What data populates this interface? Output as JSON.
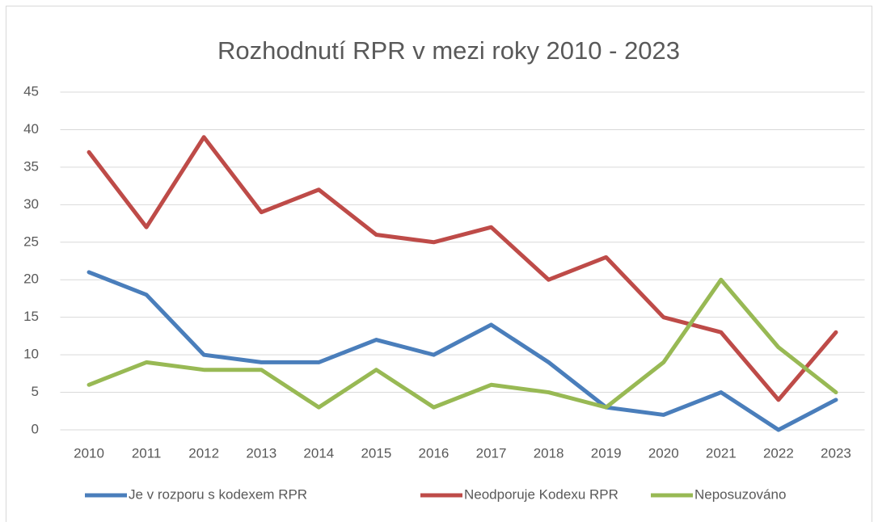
{
  "chart_data": {
    "type": "line",
    "title": "Rozhodnutí RPR v mezi roky 2010 - 2023",
    "categories": [
      "2010",
      "2011",
      "2012",
      "2013",
      "2014",
      "2015",
      "2016",
      "2017",
      "2018",
      "2019",
      "2020",
      "2021",
      "2022",
      "2023"
    ],
    "series": [
      {
        "name": "Je v rozporu s kodexem RPR",
        "color": "#4a7ebb",
        "values": [
          21,
          18,
          10,
          9,
          9,
          12,
          10,
          14,
          9,
          3,
          2,
          5,
          0,
          4
        ]
      },
      {
        "name": "Neodporuje Kodexu RPR",
        "color": "#be4b48",
        "values": [
          37,
          27,
          39,
          29,
          32,
          26,
          25,
          27,
          20,
          23,
          15,
          13,
          4,
          13
        ]
      },
      {
        "name": "Neposuzováno",
        "color": "#98b954",
        "values": [
          6,
          9,
          8,
          8,
          3,
          8,
          3,
          6,
          5,
          3,
          9,
          20,
          11,
          5
        ]
      }
    ],
    "ylim": [
      0,
      45
    ],
    "yticks": [
      0,
      5,
      10,
      15,
      20,
      25,
      30,
      35,
      40,
      45
    ],
    "grid": true,
    "legend": "bottom"
  }
}
